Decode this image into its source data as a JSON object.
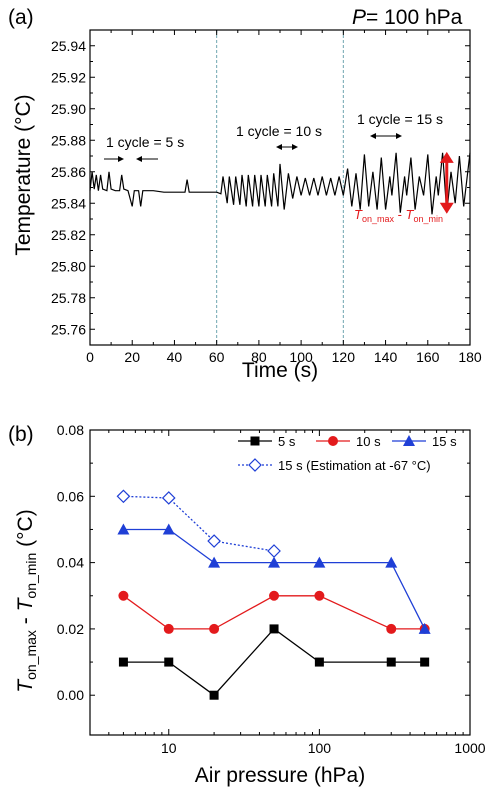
{
  "panel_a": {
    "label": "(a)",
    "pressure_var": "P",
    "pressure_value": " = 100 hPa",
    "xlabel": "Time (s)",
    "ylabel": "Temperature (°C)",
    "cycle5": "1 cycle = 5 s",
    "cycle10": "1 cycle = 10 s",
    "cycle15": "1 cycle = 15 s",
    "range_label": {
      "t1": "T",
      "s1": "on_max",
      "mid": " - ",
      "t2": "T",
      "s2": "on_min"
    },
    "colors": {
      "trace": "#000000",
      "divider": "#6fa5b0",
      "range_arrow": "#e31a1c",
      "range_text": "#e31a1c"
    }
  },
  "panel_b": {
    "label": "(b)",
    "xlabel": "Air pressure (hPa)",
    "ylabel": {
      "t1": "T",
      "s1": "on_max",
      "mid": " - ",
      "t2": "T",
      "s2": "on_min",
      "unit": " (°C)"
    }
  },
  "chart_data": [
    {
      "type": "line",
      "xlabel": "Time (s)",
      "ylabel": "Temperature (°C)",
      "xlim": [
        0,
        180
      ],
      "ylim": [
        25.75,
        25.95
      ],
      "xticks": [
        0,
        20,
        40,
        60,
        80,
        100,
        120,
        140,
        160,
        180
      ],
      "yticks": [
        25.76,
        25.78,
        25.8,
        25.82,
        25.84,
        25.86,
        25.88,
        25.9,
        25.92,
        25.94
      ],
      "vlines": [
        60,
        120
      ],
      "series": [
        {
          "values": [
            [
              0,
              25.848
            ],
            [
              1,
              25.86
            ],
            [
              2,
              25.849
            ],
            [
              3,
              25.858
            ],
            [
              4,
              25.848
            ],
            [
              5,
              25.858
            ],
            [
              6,
              25.849
            ],
            [
              8,
              25.848
            ],
            [
              9,
              25.86
            ],
            [
              10,
              25.849
            ],
            [
              12,
              25.848
            ],
            [
              14,
              25.848
            ],
            [
              15,
              25.858
            ],
            [
              16,
              25.849
            ],
            [
              18,
              25.848
            ],
            [
              20,
              25.838
            ],
            [
              21,
              25.848
            ],
            [
              23,
              25.848
            ],
            [
              24,
              25.838
            ],
            [
              25,
              25.848
            ],
            [
              30,
              25.848
            ],
            [
              35,
              25.847
            ],
            [
              40,
              25.847
            ],
            [
              45,
              25.847
            ],
            [
              46,
              25.855
            ],
            [
              47,
              25.847
            ],
            [
              55,
              25.847
            ],
            [
              60,
              25.847
            ],
            [
              62,
              25.846
            ],
            [
              63,
              25.857
            ],
            [
              65,
              25.84
            ],
            [
              66,
              25.857
            ],
            [
              68,
              25.839
            ],
            [
              69,
              25.857
            ],
            [
              71,
              25.839
            ],
            [
              72,
              25.858
            ],
            [
              74,
              25.838
            ],
            [
              75,
              25.858
            ],
            [
              77,
              25.838
            ],
            [
              78,
              25.858
            ],
            [
              80,
              25.838
            ],
            [
              81,
              25.858
            ],
            [
              83,
              25.838
            ],
            [
              84,
              25.858
            ],
            [
              86,
              25.838
            ],
            [
              87,
              25.859
            ],
            [
              89,
              25.838
            ],
            [
              90,
              25.865
            ],
            [
              92,
              25.836
            ],
            [
              94,
              25.859
            ],
            [
              96,
              25.843
            ],
            [
              98,
              25.857
            ],
            [
              100,
              25.845
            ],
            [
              102,
              25.856
            ],
            [
              104,
              25.845
            ],
            [
              106,
              25.856
            ],
            [
              108,
              25.845
            ],
            [
              110,
              25.857
            ],
            [
              112,
              25.845
            ],
            [
              114,
              25.856
            ],
            [
              116,
              25.845
            ],
            [
              118,
              25.857
            ],
            [
              120,
              25.845
            ],
            [
              122,
              25.862
            ],
            [
              124,
              25.838
            ],
            [
              126,
              25.859
            ],
            [
              128,
              25.836
            ],
            [
              130,
              25.871
            ],
            [
              132,
              25.838
            ],
            [
              134,
              25.86
            ],
            [
              136,
              25.836
            ],
            [
              138,
              25.869
            ],
            [
              140,
              25.836
            ],
            [
              142,
              25.857
            ],
            [
              143,
              25.845
            ],
            [
              145,
              25.872
            ],
            [
              147,
              25.834
            ],
            [
              149,
              25.857
            ],
            [
              150,
              25.845
            ],
            [
              152,
              25.869
            ],
            [
              154,
              25.836
            ],
            [
              156,
              25.857
            ],
            [
              158,
              25.845
            ],
            [
              160,
              25.871
            ],
            [
              162,
              25.833
            ],
            [
              164,
              25.857
            ],
            [
              165,
              25.845
            ],
            [
              167,
              25.872
            ],
            [
              169,
              25.834
            ],
            [
              171,
              25.86
            ],
            [
              173,
              25.84
            ],
            [
              175,
              25.87
            ],
            [
              177,
              25.838
            ],
            [
              180,
              25.872
            ]
          ]
        }
      ],
      "annotations": [
        "1 cycle = 5 s",
        "1 cycle = 10 s",
        "1 cycle = 15 s",
        "P = 100 hPa",
        "Ton_max - Ton_min"
      ]
    },
    {
      "type": "line",
      "xlabel": "Air pressure (hPa)",
      "ylabel": "Ton_max - Ton_min (°C)",
      "xscale": "log",
      "xlim": [
        3,
        1000
      ],
      "ylim": [
        -0.012,
        0.08
      ],
      "xticks": [
        10,
        100,
        1000
      ],
      "yticks": [
        0.0,
        0.02,
        0.04,
        0.06,
        0.08
      ],
      "x": [
        5,
        10,
        20,
        50,
        100,
        300,
        500
      ],
      "legend": "top-right",
      "series": [
        {
          "name": "5 s",
          "values": [
            0.01,
            0.01,
            0.0,
            0.02,
            0.01,
            0.01,
            0.01
          ],
          "color": "#000000",
          "marker": "square"
        },
        {
          "name": "10 s",
          "values": [
            0.03,
            0.02,
            0.02,
            0.03,
            0.03,
            0.02,
            0.02
          ],
          "color": "#e31a1c",
          "marker": "circle"
        },
        {
          "name": "15 s",
          "values": [
            0.05,
            0.05,
            0.04,
            0.04,
            0.04,
            0.04,
            0.02
          ],
          "color": "#1f3fd6",
          "marker": "triangle"
        },
        {
          "name": "15 s (Estimation at -67 °C)",
          "x": [
            5,
            10,
            20,
            50
          ],
          "values": [
            0.06,
            0.0595,
            0.0465,
            0.0435
          ],
          "color": "#1f3fd6",
          "marker": "open-diamond",
          "dashed": true
        }
      ]
    }
  ]
}
